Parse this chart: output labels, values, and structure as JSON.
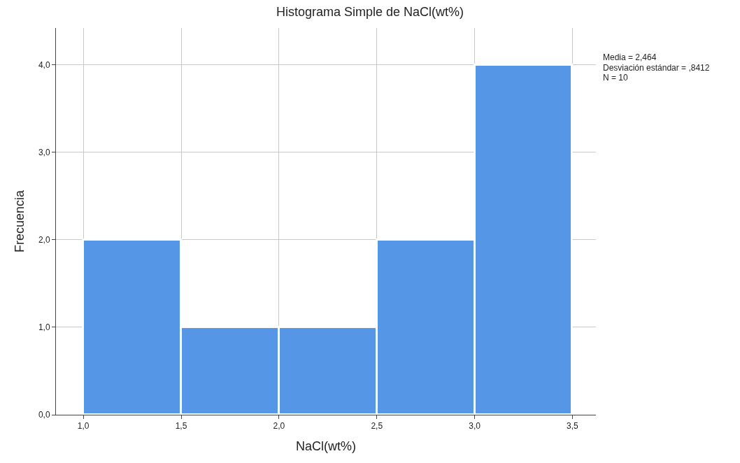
{
  "chart_data": {
    "type": "histogram",
    "title": "Histograma Simple de NaCl(wt%)",
    "xlabel": "NaCl(wt%)",
    "ylabel": "Frecuencia",
    "bins": [
      1.0,
      1.5,
      2.0,
      2.5,
      3.0,
      3.5
    ],
    "values": [
      2,
      1,
      1,
      2,
      4
    ],
    "color": "#5596e6",
    "xlim": [
      0.86,
      3.62
    ],
    "ylim": [
      0,
      4.42
    ],
    "xticks": [
      {
        "value": 1.0,
        "label": "1,0"
      },
      {
        "value": 1.5,
        "label": "1,5"
      },
      {
        "value": 2.0,
        "label": "2,0"
      },
      {
        "value": 2.5,
        "label": "2,5"
      },
      {
        "value": 3.0,
        "label": "3,0"
      },
      {
        "value": 3.5,
        "label": "3,5"
      }
    ],
    "yticks": [
      {
        "value": 0,
        "label": "0,0"
      },
      {
        "value": 1,
        "label": "1,0"
      },
      {
        "value": 2,
        "label": "2,0"
      },
      {
        "value": 3,
        "label": "3,0"
      },
      {
        "value": 4,
        "label": "4,0"
      }
    ],
    "grid": true,
    "annotations": [
      "Media = 2,464",
      "Desviación estándar = ,8412",
      "N = 10"
    ]
  }
}
